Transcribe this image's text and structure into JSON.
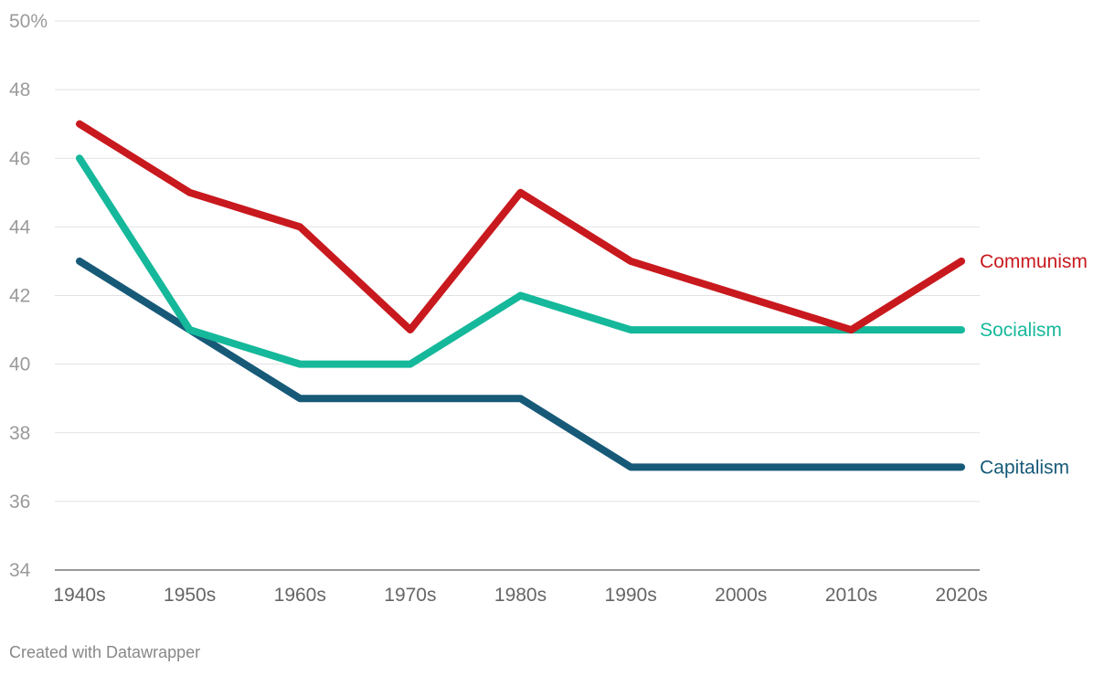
{
  "chart_data": {
    "type": "line",
    "x": [
      "1940s",
      "1950s",
      "1960s",
      "1970s",
      "1980s",
      "1990s",
      "2000s",
      "2010s",
      "2020s"
    ],
    "yticks": [
      "34",
      "36",
      "38",
      "40",
      "42",
      "44",
      "46",
      "48",
      "50%"
    ],
    "ylim": [
      34,
      50
    ],
    "grid": true,
    "legend": "direct labels at line ends",
    "series": [
      {
        "name": "Communism",
        "color": "#c8191e",
        "values": [
          47,
          45,
          44,
          41,
          45,
          43,
          42,
          41,
          43
        ]
      },
      {
        "name": "Socialism",
        "color": "#15b89a",
        "values": [
          46,
          41,
          40,
          40,
          42,
          41,
          41,
          41,
          41
        ]
      },
      {
        "name": "Capitalism",
        "color": "#175a78",
        "values": [
          43,
          41,
          39,
          39,
          39,
          37,
          37,
          37,
          37
        ]
      }
    ]
  },
  "credit": "Created with Datawrapper"
}
